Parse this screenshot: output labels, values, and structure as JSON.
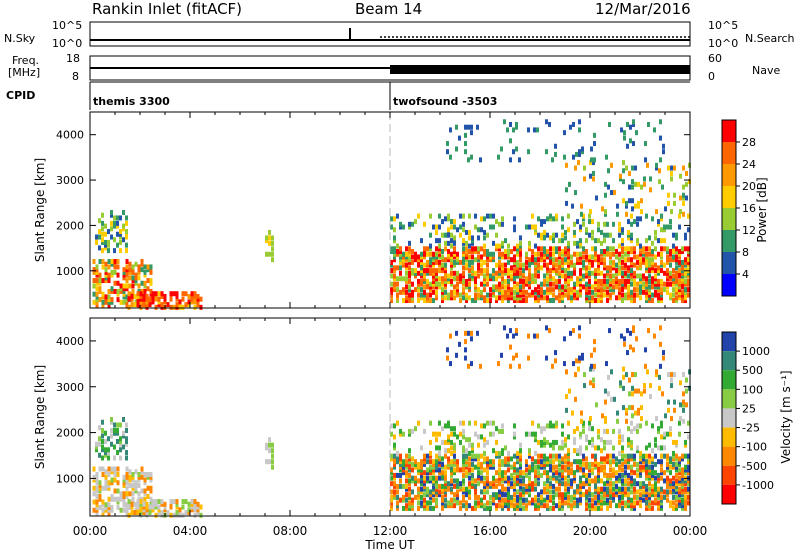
{
  "header": {
    "title": "Rankin Inlet (fitACF)",
    "beam": "Beam 14",
    "date": "12/Mar/2016"
  },
  "panels": {
    "nsky": {
      "label": "N.Sky",
      "right_label": "N.Search",
      "left_ticks": [
        "10^5",
        "10^0"
      ],
      "right_ticks": [
        "10^5",
        "10^0"
      ]
    },
    "freq": {
      "label_line1": "Freq.",
      "label_line2": "[MHz]",
      "right_label": "Nave",
      "left_ticks": [
        "18",
        "8"
      ],
      "right_ticks": [
        "60",
        "0"
      ]
    },
    "cpid": {
      "label": "CPID",
      "segments": [
        {
          "name": "themis 3300",
          "start_hour": 0
        },
        {
          "name": "twofsound -3503",
          "start_hour": 12
        }
      ]
    }
  },
  "chart_data": [
    {
      "type": "heatmap",
      "panel": "power",
      "ylabel": "Slant Range [km]",
      "yticks": [
        1000,
        2000,
        3000,
        4000
      ],
      "ylim": [
        180,
        4500
      ],
      "xlim": [
        0,
        24
      ],
      "colorbar": {
        "label": "Power [dB]",
        "ticks": [
          28,
          24,
          20,
          16,
          12,
          8,
          4
        ],
        "colors": [
          "#ff0000",
          "#ff6600",
          "#ff9900",
          "#ffcc00",
          "#99cc33",
          "#339966",
          "#2255aa",
          "#0000ff"
        ]
      }
    },
    {
      "type": "heatmap",
      "panel": "velocity",
      "ylabel": "Slant Range [km]",
      "yticks": [
        1000,
        2000,
        3000,
        4000
      ],
      "ylim": [
        180,
        4500
      ],
      "xlim": [
        0,
        24
      ],
      "colorbar": {
        "label": "Velocity [m s⁻¹]",
        "ticks": [
          "1000",
          "500",
          "100",
          "25",
          "-25",
          "-100",
          "-500",
          "-1000"
        ],
        "colors": [
          "#2244aa",
          "#338877",
          "#33aa33",
          "#88cc44",
          "#c8c8c8",
          "#ffbb00",
          "#ff8800",
          "#ff4400",
          "#ff0000"
        ]
      },
      "xlabel": "Time UT",
      "xticks": [
        "00:00",
        "04:00",
        "08:00",
        "12:00",
        "16:00",
        "20:00",
        "00:00"
      ]
    }
  ]
}
